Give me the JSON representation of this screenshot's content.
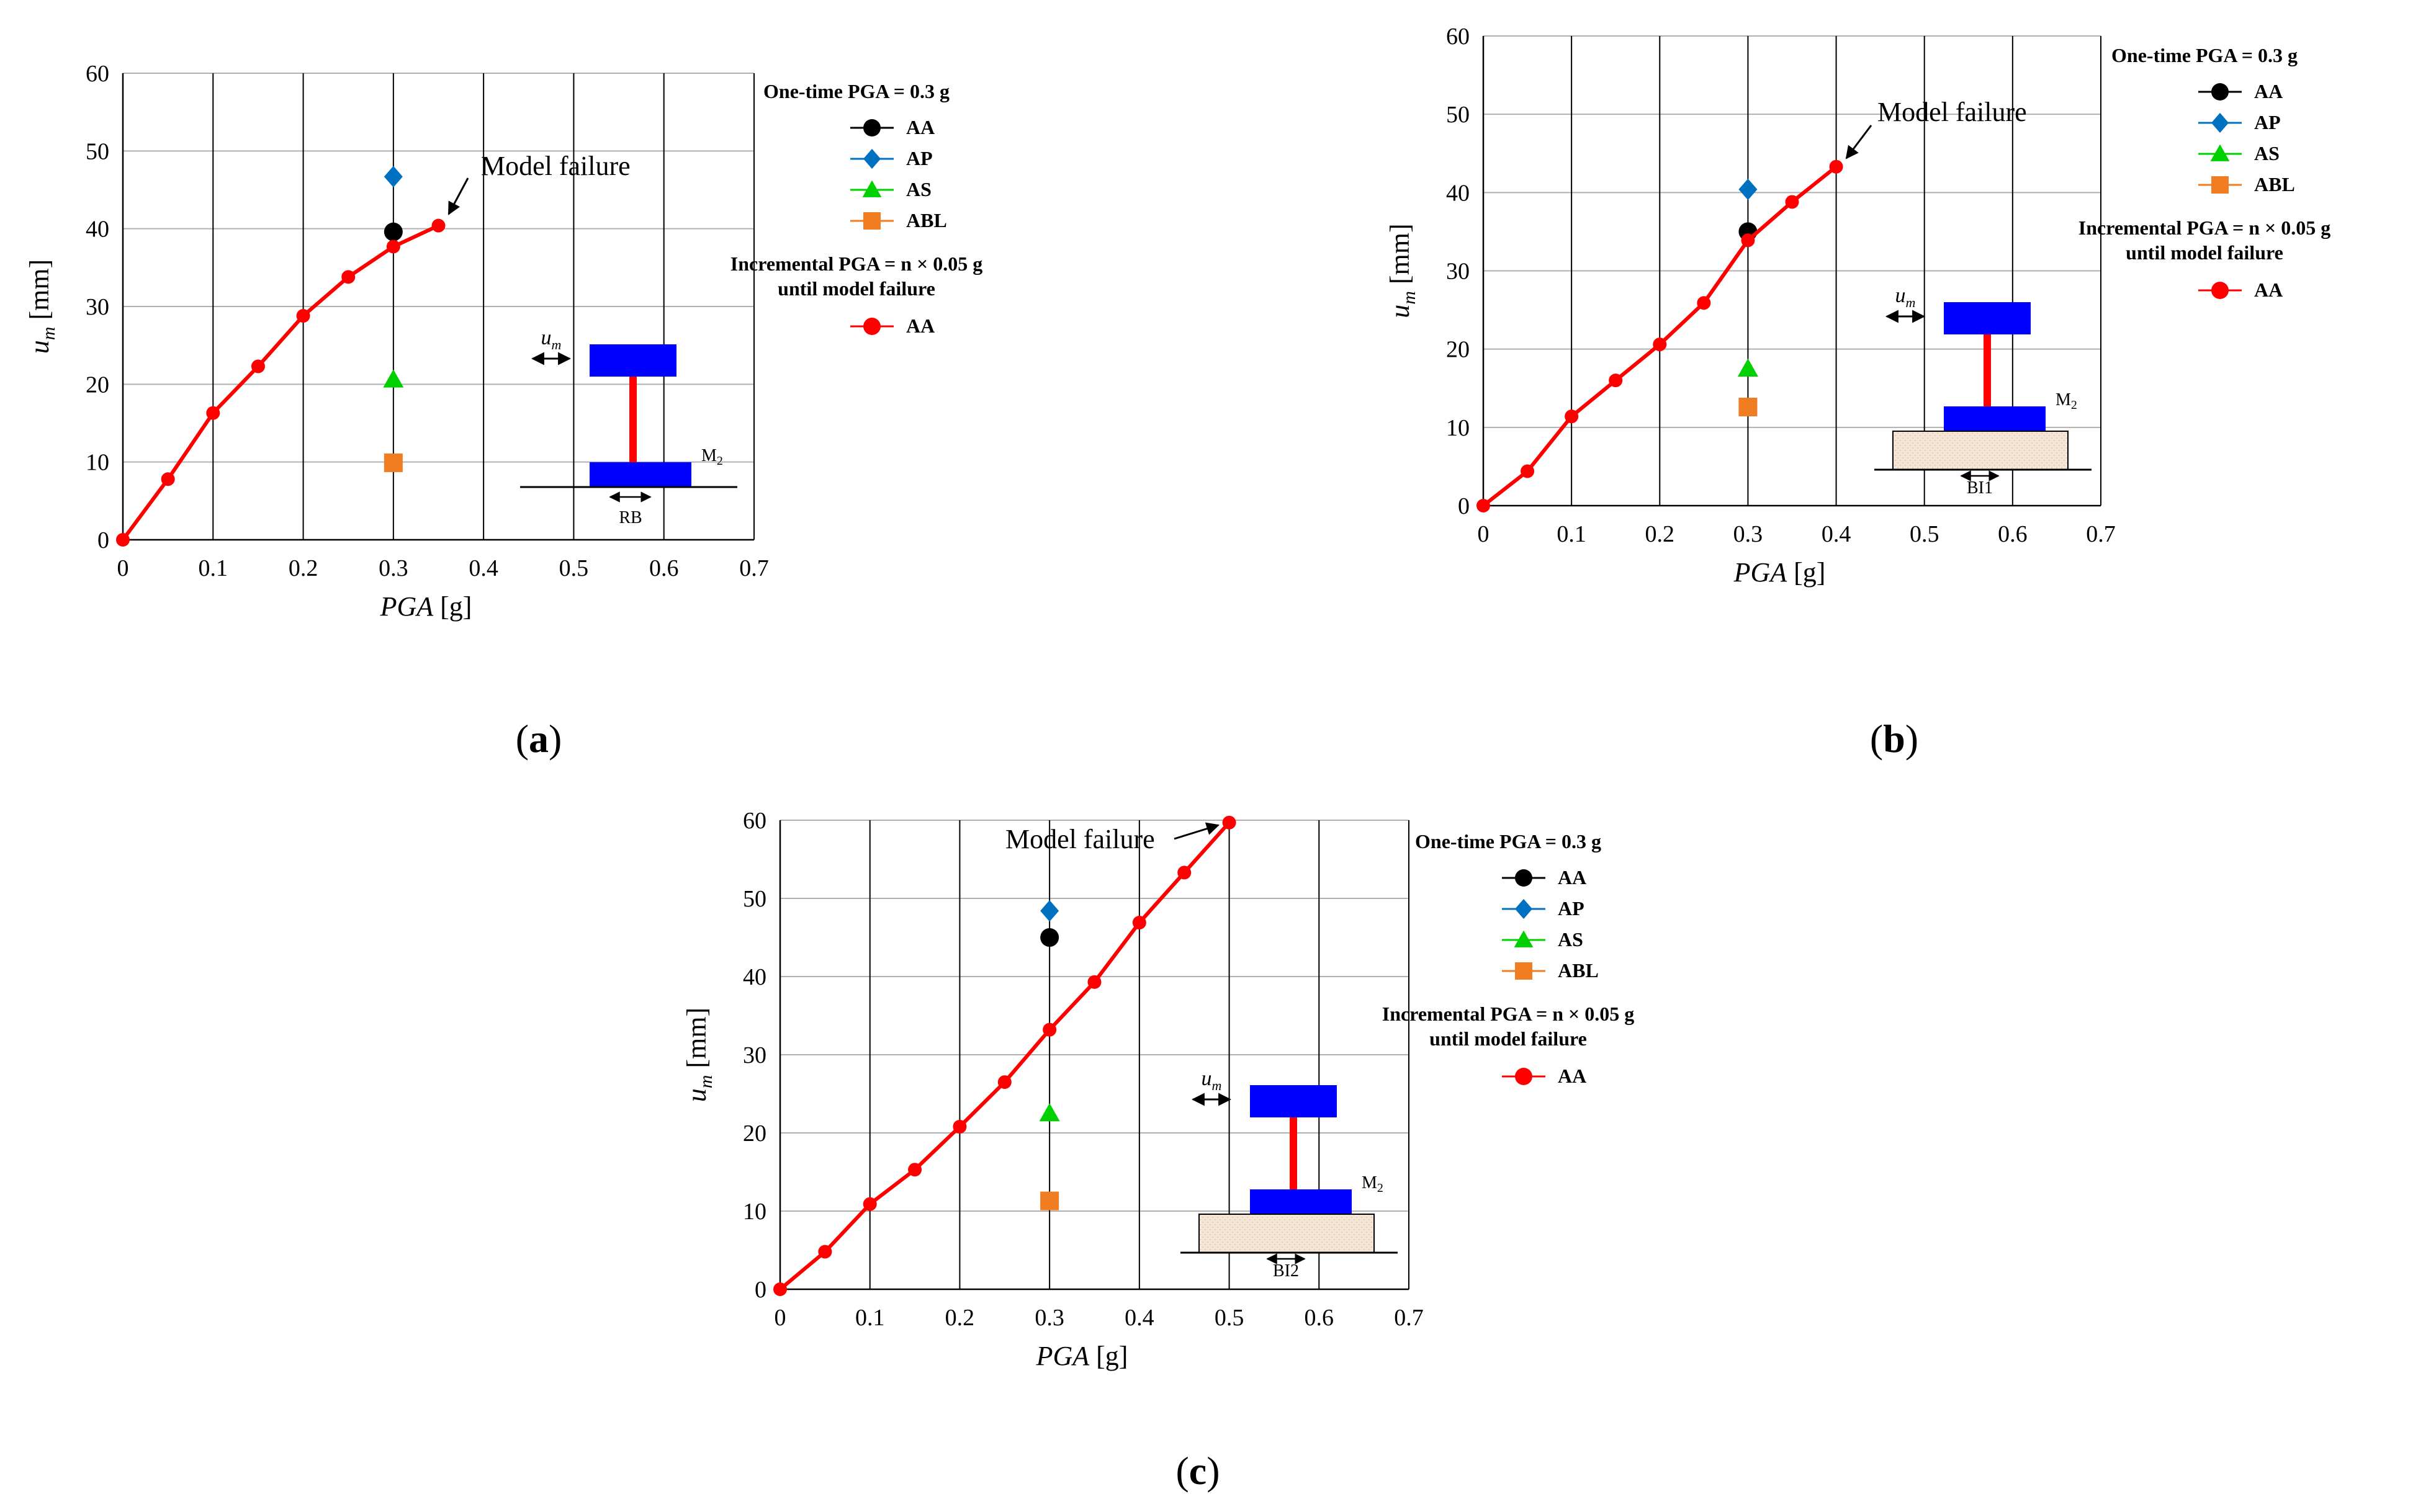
{
  "figure_letters": [
    "(",
    "a",
    ")",
    "(",
    "b",
    ")",
    "(",
    "c",
    ")"
  ],
  "colors": {
    "AA": "#000000",
    "AP": "#0070c0",
    "AS": "#00d000",
    "ABL": "#f07d22",
    "incremental": "#ff0000",
    "mass": "#0000ff",
    "column": "#ff0000",
    "soil": "#f6e6d8",
    "grid": "#b0b0b0"
  },
  "chart_data": [
    {
      "type": "scatter",
      "panel": "a",
      "title": "",
      "xlabel": "PGA [g]",
      "ylabel": "u_m [mm]",
      "xlim": [
        0,
        0.7
      ],
      "ylim": [
        0,
        60
      ],
      "xticks": [
        "0",
        "0.1",
        "0.2",
        "0.3",
        "0.4",
        "0.5",
        "0.6",
        "0.7"
      ],
      "yticks": [
        "0",
        "10",
        "20",
        "30",
        "40",
        "50",
        "60"
      ],
      "grid": true,
      "series": [
        {
          "name": "AA",
          "group": "one-time",
          "marker": "circle",
          "x": [
            0.3
          ],
          "y": [
            39.6
          ]
        },
        {
          "name": "AP",
          "group": "one-time",
          "marker": "diamond",
          "x": [
            0.3
          ],
          "y": [
            46.7
          ]
        },
        {
          "name": "AS",
          "group": "one-time",
          "marker": "triangle",
          "x": [
            0.3
          ],
          "y": [
            20.6
          ]
        },
        {
          "name": "ABL",
          "group": "one-time",
          "marker": "square",
          "x": [
            0.3
          ],
          "y": [
            9.9
          ]
        },
        {
          "name": "AA",
          "group": "incremental",
          "marker": "circle-line",
          "x": [
            0,
            0.05,
            0.1,
            0.15,
            0.2,
            0.25,
            0.3,
            0.35
          ],
          "y": [
            0,
            7.8,
            16.3,
            22.3,
            28.8,
            33.8,
            37.7,
            40.4
          ]
        }
      ],
      "legend": {
        "title_one_time": "One-time PGA = 0.3 g",
        "title_incremental_line1": "Incremental PGA = n × 0.05 g",
        "title_incremental_line2": "until model failure"
      },
      "annotation": {
        "text": "Model failure",
        "x": 0.35,
        "y": 40.4
      },
      "schematic": {
        "um": "u",
        "um_sub": "m",
        "mass": "M",
        "mass_sub": "2",
        "base": "RB"
      }
    },
    {
      "type": "scatter",
      "panel": "b",
      "title": "",
      "xlabel": "PGA [g]",
      "ylabel": "u_m [mm]",
      "xlim": [
        0,
        0.7
      ],
      "ylim": [
        0,
        60
      ],
      "xticks": [
        "0",
        "0.1",
        "0.2",
        "0.3",
        "0.4",
        "0.5",
        "0.6",
        "0.7"
      ],
      "yticks": [
        "0",
        "10",
        "20",
        "30",
        "40",
        "50",
        "60"
      ],
      "grid": true,
      "series": [
        {
          "name": "AA",
          "group": "one-time",
          "marker": "circle",
          "x": [
            0.3
          ],
          "y": [
            35.0
          ]
        },
        {
          "name": "AP",
          "group": "one-time",
          "marker": "diamond",
          "x": [
            0.3
          ],
          "y": [
            40.4
          ]
        },
        {
          "name": "AS",
          "group": "one-time",
          "marker": "triangle",
          "x": [
            0.3
          ],
          "y": [
            17.5
          ]
        },
        {
          "name": "ABL",
          "group": "one-time",
          "marker": "square",
          "x": [
            0.3
          ],
          "y": [
            12.6
          ]
        },
        {
          "name": "AA",
          "group": "incremental",
          "marker": "circle-line",
          "x": [
            0,
            0.05,
            0.1,
            0.15,
            0.2,
            0.25,
            0.3,
            0.35,
            0.4
          ],
          "y": [
            0,
            4.4,
            11.4,
            16.0,
            20.6,
            25.9,
            33.9,
            38.8,
            43.3
          ]
        }
      ],
      "legend": {
        "title_one_time": "One-time PGA = 0.3 g",
        "title_incremental_line1": "Incremental PGA = n × 0.05 g",
        "title_incremental_line2": "until model failure"
      },
      "annotation": {
        "text": "Model failure",
        "x": 0.4,
        "y": 43.3
      },
      "schematic": {
        "um": "u",
        "um_sub": "m",
        "mass": "M",
        "mass_sub": "2",
        "base": "BI1"
      }
    },
    {
      "type": "scatter",
      "panel": "c",
      "title": "",
      "xlabel": "PGA [g]",
      "ylabel": "u_m [mm]",
      "xlim": [
        0,
        0.7
      ],
      "ylim": [
        0,
        60
      ],
      "xticks": [
        "0",
        "0.1",
        "0.2",
        "0.3",
        "0.4",
        "0.5",
        "0.6",
        "0.7"
      ],
      "yticks": [
        "0",
        "10",
        "20",
        "30",
        "40",
        "50",
        "60"
      ],
      "grid": true,
      "series": [
        {
          "name": "AA",
          "group": "one-time",
          "marker": "circle",
          "x": [
            0.3
          ],
          "y": [
            45.0
          ]
        },
        {
          "name": "AP",
          "group": "one-time",
          "marker": "diamond",
          "x": [
            0.3
          ],
          "y": [
            48.4
          ]
        },
        {
          "name": "AS",
          "group": "one-time",
          "marker": "triangle",
          "x": [
            0.3
          ],
          "y": [
            22.5
          ]
        },
        {
          "name": "ABL",
          "group": "one-time",
          "marker": "square",
          "x": [
            0.3
          ],
          "y": [
            11.3
          ]
        },
        {
          "name": "AA",
          "group": "incremental",
          "marker": "circle-line",
          "x": [
            0,
            0.05,
            0.1,
            0.15,
            0.2,
            0.25,
            0.3,
            0.35,
            0.4,
            0.45,
            0.5
          ],
          "y": [
            0,
            4.8,
            10.9,
            15.3,
            20.8,
            26.5,
            33.2,
            39.3,
            46.9,
            53.3,
            59.7
          ]
        }
      ],
      "legend": {
        "title_one_time": "One-time PGA = 0.3 g",
        "title_incremental_line1": "Incremental PGA = n × 0.05 g",
        "title_incremental_line2": "until model failure"
      },
      "annotation": {
        "text": "Model failure",
        "x": 0.5,
        "y": 59.7
      },
      "schematic": {
        "um": "u",
        "um_sub": "m",
        "mass": "M",
        "mass_sub": "2",
        "base": "BI2"
      }
    }
  ]
}
